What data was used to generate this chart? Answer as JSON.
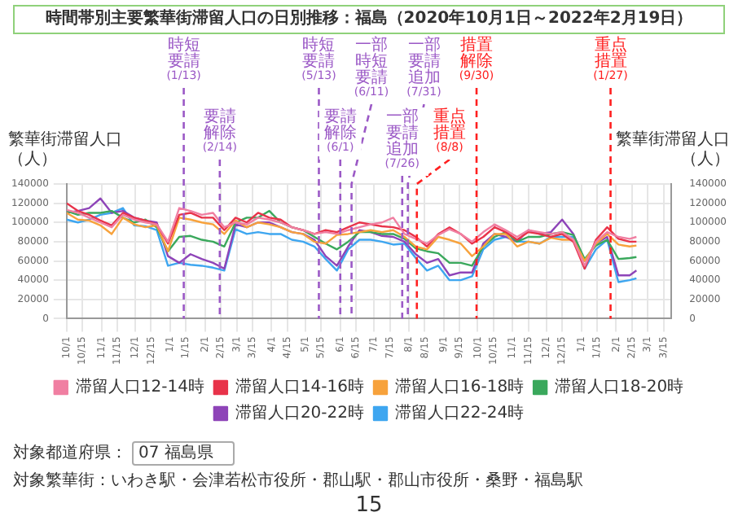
{
  "chart_data": {
    "type": "line",
    "title": "時間帯別主要繁華街滞留人口の日別推移：福島（2020年10月1日～2022年2月19日）",
    "ylabel": "繁華街滞留人口（人）",
    "y2label": "繁華街滞留人口（人）",
    "x": [
      "2020-10-01",
      "2020-10-11",
      "2020-10-21",
      "2020-10-31",
      "2020-11-10",
      "2020-11-20",
      "2020-11-30",
      "2020-12-10",
      "2020-12-20",
      "2020-12-30",
      "2021-01-09",
      "2021-01-19",
      "2021-01-29",
      "2021-02-08",
      "2021-02-18",
      "2021-02-28",
      "2021-03-10",
      "2021-03-20",
      "2021-03-30",
      "2021-04-09",
      "2021-04-19",
      "2021-04-29",
      "2021-05-09",
      "2021-05-19",
      "2021-05-29",
      "2021-06-08",
      "2021-06-18",
      "2021-06-28",
      "2021-07-08",
      "2021-07-18",
      "2021-07-28",
      "2021-08-07",
      "2021-08-17",
      "2021-08-27",
      "2021-09-06",
      "2021-09-16",
      "2021-09-26",
      "2021-10-06",
      "2021-10-16",
      "2021-10-26",
      "2021-11-05",
      "2021-11-15",
      "2021-11-25",
      "2021-12-05",
      "2021-12-15",
      "2021-12-25",
      "2022-01-04",
      "2022-01-14",
      "2022-01-24",
      "2022-02-03",
      "2022-02-13",
      "2022-02-19"
    ],
    "series": [
      {
        "name": "滞留人口12-14時",
        "color": "#f07fa2",
        "values": [
          113000,
          110000,
          105000,
          100000,
          95000,
          108000,
          103000,
          100000,
          98000,
          80000,
          115000,
          112000,
          108000,
          110000,
          95000,
          100000,
          98000,
          105000,
          103000,
          100000,
          95000,
          92000,
          88000,
          90000,
          88000,
          92000,
          95000,
          98000,
          100000,
          105000,
          88000,
          83000,
          78000,
          87000,
          93000,
          88000,
          80000,
          90000,
          98000,
          92000,
          85000,
          92000,
          90000,
          88000,
          90000,
          82000,
          55000,
          80000,
          90000,
          85000,
          83000,
          85000
        ]
      },
      {
        "name": "滞留人口14-16時",
        "color": "#e8334a",
        "values": [
          120000,
          112000,
          108000,
          102000,
          97000,
          110000,
          105000,
          102000,
          98000,
          78000,
          108000,
          110000,
          105000,
          105000,
          92000,
          105000,
          100000,
          110000,
          105000,
          103000,
          95000,
          92000,
          88000,
          92000,
          90000,
          95000,
          100000,
          98000,
          96000,
          95000,
          92000,
          85000,
          75000,
          88000,
          95000,
          88000,
          78000,
          85000,
          95000,
          90000,
          82000,
          90000,
          88000,
          85000,
          88000,
          80000,
          52000,
          82000,
          95000,
          83000,
          80000,
          80000
        ]
      },
      {
        "name": "滞留人口16-18時",
        "color": "#f7a23c",
        "values": [
          110000,
          103000,
          102000,
          97000,
          88000,
          105000,
          98000,
          95000,
          97000,
          70000,
          105000,
          103000,
          100000,
          98000,
          88000,
          102000,
          95000,
          100000,
          98000,
          95000,
          90000,
          88000,
          80000,
          78000,
          87000,
          88000,
          90000,
          92000,
          90000,
          92000,
          85000,
          75000,
          72000,
          85000,
          82000,
          78000,
          65000,
          75000,
          88000,
          88000,
          75000,
          80000,
          78000,
          84000,
          82000,
          82000,
          60000,
          78000,
          88000,
          77000,
          75000,
          76000
        ]
      },
      {
        "name": "滞留人口18-20時",
        "color": "#3aa85c",
        "values": [
          112000,
          108000,
          110000,
          110000,
          112000,
          105000,
          100000,
          103000,
          95000,
          70000,
          85000,
          86000,
          82000,
          80000,
          75000,
          100000,
          105000,
          105000,
          112000,
          100000,
          95000,
          92000,
          85000,
          78000,
          72000,
          80000,
          90000,
          90000,
          88000,
          88000,
          83000,
          73000,
          70000,
          68000,
          58000,
          58000,
          55000,
          75000,
          85000,
          90000,
          80000,
          85000,
          85000,
          88000,
          90000,
          87000,
          62000,
          76000,
          82000,
          62000,
          63000,
          64000
        ]
      },
      {
        "name": "滞留人口20-22時",
        "color": "#8e44b8",
        "values": [
          110000,
          112000,
          115000,
          125000,
          110000,
          112000,
          105000,
          102000,
          100000,
          65000,
          58000,
          67000,
          62000,
          58000,
          52000,
          98000,
          95000,
          100000,
          100000,
          95000,
          90000,
          88000,
          82000,
          65000,
          55000,
          75000,
          92000,
          90000,
          86000,
          85000,
          80000,
          67000,
          58000,
          62000,
          45000,
          48000,
          48000,
          78000,
          88000,
          85000,
          80000,
          92000,
          88000,
          90000,
          103000,
          88000,
          60000,
          78000,
          85000,
          45000,
          45000,
          50000
        ]
      },
      {
        "name": "滞留人口22-24時",
        "color": "#3ea6f0",
        "values": [
          103000,
          100000,
          103000,
          108000,
          110000,
          115000,
          97000,
          96000,
          92000,
          55000,
          58000,
          56000,
          55000,
          53000,
          50000,
          93000,
          88000,
          90000,
          88000,
          88000,
          82000,
          80000,
          75000,
          62000,
          50000,
          72000,
          82000,
          82000,
          80000,
          77000,
          78000,
          63000,
          50000,
          55000,
          40000,
          40000,
          44000,
          72000,
          82000,
          85000,
          80000,
          80000,
          78000,
          85000,
          85000,
          85000,
          52000,
          72000,
          82000,
          38000,
          40000,
          42000
        ]
      }
    ],
    "xlim": [
      "2020-10-01",
      "2022-03-22"
    ],
    "xticks": [
      {
        "value": "2020-10-01",
        "label": "10/1"
      },
      {
        "value": "2020-10-15",
        "label": "10/15"
      },
      {
        "value": "2020-11-01",
        "label": "11/1"
      },
      {
        "value": "2020-11-15",
        "label": "11/15"
      },
      {
        "value": "2020-12-01",
        "label": "12/1"
      },
      {
        "value": "2020-12-15",
        "label": "12/15"
      },
      {
        "value": "2021-01-01",
        "label": "1/1"
      },
      {
        "value": "2021-01-15",
        "label": "1/15"
      },
      {
        "value": "2021-02-01",
        "label": "2/1"
      },
      {
        "value": "2021-02-15",
        "label": "2/15"
      },
      {
        "value": "2021-03-01",
        "label": "3/1"
      },
      {
        "value": "2021-03-15",
        "label": "3/15"
      },
      {
        "value": "2021-04-01",
        "label": "4/1"
      },
      {
        "value": "2021-04-15",
        "label": "4/15"
      },
      {
        "value": "2021-05-01",
        "label": "5/1"
      },
      {
        "value": "2021-05-15",
        "label": "5/15"
      },
      {
        "value": "2021-06-01",
        "label": "6/1"
      },
      {
        "value": "2021-06-15",
        "label": "6/15"
      },
      {
        "value": "2021-07-01",
        "label": "7/1"
      },
      {
        "value": "2021-07-15",
        "label": "7/15"
      },
      {
        "value": "2021-08-01",
        "label": "8/1"
      },
      {
        "value": "2021-08-15",
        "label": "8/15"
      },
      {
        "value": "2021-09-01",
        "label": "9/1"
      },
      {
        "value": "2021-09-15",
        "label": "9/15"
      },
      {
        "value": "2021-10-01",
        "label": "10/1"
      },
      {
        "value": "2021-10-15",
        "label": "10/15"
      },
      {
        "value": "2021-11-01",
        "label": "11/1"
      },
      {
        "value": "2021-11-15",
        "label": "11/15"
      },
      {
        "value": "2021-12-01",
        "label": "12/1"
      },
      {
        "value": "2021-12-15",
        "label": "12/15"
      },
      {
        "value": "2022-01-01",
        "label": "1/1"
      },
      {
        "value": "2022-01-15",
        "label": "1/15"
      },
      {
        "value": "2022-02-01",
        "label": "2/1"
      },
      {
        "value": "2022-02-15",
        "label": "2/15"
      },
      {
        "value": "2022-03-01",
        "label": "3/1"
      },
      {
        "value": "2022-03-15",
        "label": "3/15"
      }
    ],
    "ylim": [
      0,
      140000
    ],
    "yticks": [
      0,
      20000,
      40000,
      60000,
      80000,
      100000,
      120000,
      140000
    ],
    "y2lim": [
      0,
      140000
    ],
    "y2ticks": [
      0,
      20000,
      40000,
      60000,
      80000,
      100000,
      120000,
      140000
    ],
    "ref_lines": [
      {
        "axis": "x",
        "value": "2021-01-13",
        "label": "時短要請(1/13)",
        "color": "#9b59c6",
        "line_style": "dashed"
      },
      {
        "axis": "x",
        "value": "2021-02-14",
        "label": "要請解除(2/14)",
        "color": "#9b59c6",
        "line_style": "dashed"
      },
      {
        "axis": "x",
        "value": "2021-05-13",
        "label": "時短要請(5/13)",
        "color": "#9b59c6",
        "line_style": "dashed"
      },
      {
        "axis": "x",
        "value": "2021-06-01",
        "label": "要請解除(6/1)",
        "color": "#9b59c6",
        "line_style": "dashed"
      },
      {
        "axis": "x",
        "value": "2021-06-11",
        "label": "一部時短要請(6/11)",
        "color": "#9b59c6",
        "line_style": "dashed"
      },
      {
        "axis": "x",
        "value": "2021-07-26",
        "label": "一部要請追加(7/26)",
        "color": "#9b59c6",
        "line_style": "dashed"
      },
      {
        "axis": "x",
        "value": "2021-07-31",
        "label": "一部要請追加(7/31)",
        "color": "#9b59c6",
        "line_style": "dashed"
      },
      {
        "axis": "x",
        "value": "2021-08-08",
        "label": "重点措置(8/8)",
        "color": "#ff2020",
        "line_style": "dashed"
      },
      {
        "axis": "x",
        "value": "2021-09-30",
        "label": "措置解除(9/30)",
        "color": "#ff2020",
        "line_style": "dashed"
      },
      {
        "axis": "x",
        "value": "2022-01-27",
        "label": "重点措置(1/27)",
        "color": "#ff2020",
        "line_style": "dashed"
      }
    ],
    "annotations": [
      "対象都道府県：",
      "07 福島県",
      "対象繁華街：いわき駅・会津若松市役所・郡山駅・郡山市役所・桑野・福島駅",
      "15"
    ],
    "grid": true,
    "legend": "bottom",
    "marker": "none",
    "line_style": "solid"
  }
}
